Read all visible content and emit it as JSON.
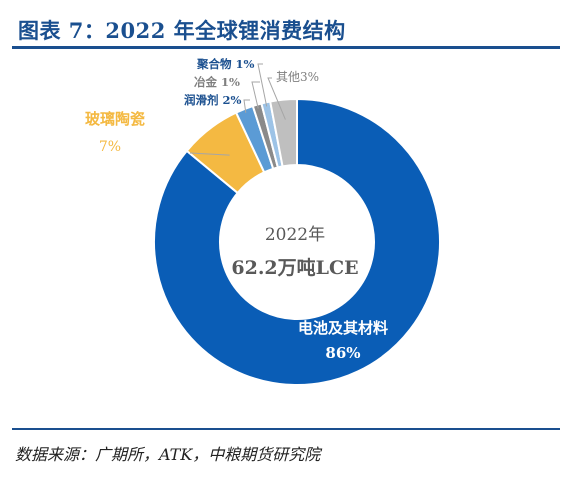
{
  "title": "图表 7：2022 年全球锂消费结构",
  "source": "数据来源：广期所，ATK，中粮期货研究院",
  "colors": {
    "brand": "#1a4f8f",
    "battery": "#0a5db6",
    "glass": "#f4b942",
    "lubricant": "#5b9bd5",
    "metallurgy": "#8a8a8a",
    "polymer": "#9dc3e6",
    "other": "#bfbfbf"
  },
  "chart_data": {
    "type": "pie",
    "style": "donut",
    "center_text": [
      "2022年",
      "62.2万吨LCE"
    ],
    "slices": [
      {
        "label": "电池及其材料",
        "value": 86,
        "value_text": "86%",
        "color": "#0a5db6",
        "label_color": "#ffffff"
      },
      {
        "label": "玻璃陶瓷",
        "value": 7,
        "value_text": "7%",
        "color": "#f4b942",
        "label_color": "#f4b942"
      },
      {
        "label": "润滑剂",
        "value": 2,
        "value_text": "2%",
        "color": "#5b9bd5",
        "label_color": "#1a4f8f"
      },
      {
        "label": "冶金",
        "value": 1,
        "value_text": "1%",
        "color": "#8a8a8a",
        "label_color": "#7f7f7f"
      },
      {
        "label": "聚合物",
        "value": 1,
        "value_text": "1%",
        "color": "#9dc3e6",
        "label_color": "#1a4f8f"
      },
      {
        "label": "其他",
        "value": 3,
        "value_text": "3%",
        "color": "#bfbfbf",
        "label_color": "#7f7f7f"
      }
    ]
  }
}
